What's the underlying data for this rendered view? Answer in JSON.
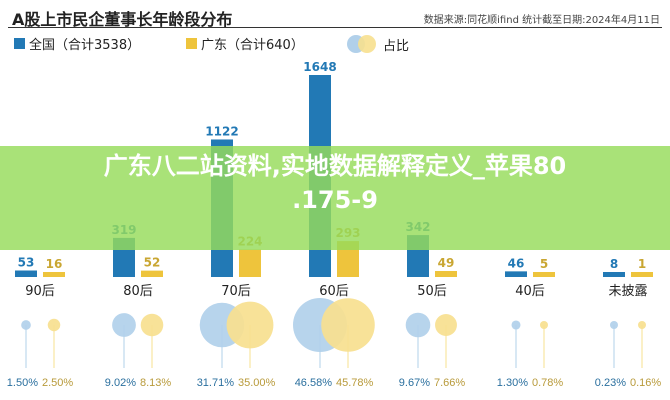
{
  "chart_data": {
    "type": "bar",
    "title": "A股上市民企董事长年龄段分布",
    "source": "数据来源:同花顺ifind  统计截至日期:2024年4月11日",
    "categories": [
      "90后",
      "80后",
      "70后",
      "60后",
      "50后",
      "40后",
      "未披露"
    ],
    "series": [
      {
        "name": "全国（合计3538）",
        "color": "#2279b5",
        "values": [
          53,
          319,
          1122,
          1648,
          342,
          46,
          8
        ],
        "shares": [
          "1.50%",
          "9.02%",
          "31.71%",
          "46.58%",
          "9.67%",
          "1.30%",
          "0.23%"
        ],
        "share_color": "#b1d0ea"
      },
      {
        "name": "广东（合计640）",
        "color": "#eec43c",
        "values": [
          16,
          52,
          224,
          293,
          49,
          5,
          1
        ],
        "shares": [
          "2.50%",
          "8.13%",
          "35.00%",
          "45.78%",
          "7.66%",
          "0.78%",
          "0.16%"
        ],
        "share_color": "#f7e08f"
      }
    ],
    "share_legend": "占比"
  },
  "overlay": {
    "line1": "广东八二站资料,实地数据解释定义_苹果80",
    "line2": ".175-9"
  }
}
